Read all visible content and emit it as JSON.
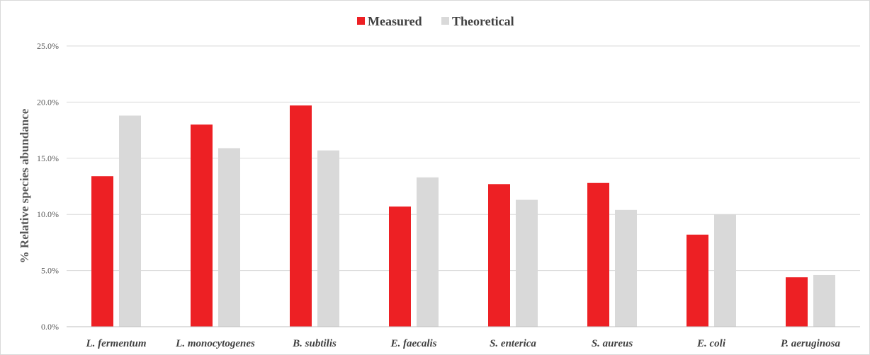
{
  "chart_data": {
    "type": "bar",
    "categories": [
      "L. fermentum",
      "L. monocytogenes",
      "B. subtilis",
      "E. faecalis",
      "S. enterica",
      "S. aureus",
      "E. coli",
      "P. aeruginosa"
    ],
    "series": [
      {
        "name": "Measured",
        "color": "#ed2024",
        "values": [
          13.4,
          18.0,
          19.7,
          10.7,
          12.7,
          12.8,
          8.2,
          4.4
        ]
      },
      {
        "name": "Theoretical",
        "color": "#d9d9d9",
        "values": [
          18.8,
          15.9,
          15.7,
          13.3,
          11.3,
          10.4,
          10.0,
          4.6
        ]
      }
    ],
    "xlabel": "",
    "ylabel": "% Relative species abundance",
    "ylim": [
      0,
      25
    ],
    "yticks": [
      0,
      5,
      10,
      15,
      20,
      25
    ],
    "ytick_labels": [
      "0.0%",
      "5.0%",
      "10.0%",
      "15.0%",
      "20.0%",
      "25.0%"
    ],
    "grid": true,
    "legend_position": "top-center",
    "colors": {
      "gridline": "#d9d9d9",
      "axis": "#bfbfbf"
    }
  }
}
